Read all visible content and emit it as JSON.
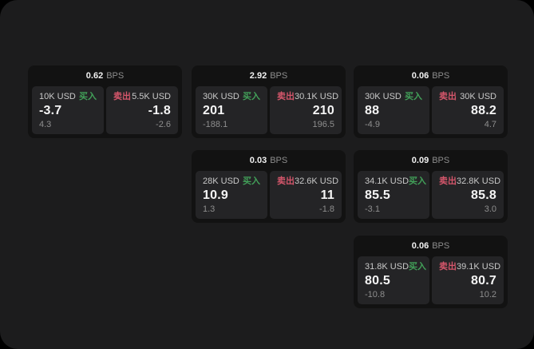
{
  "page": {
    "unit_label": "BPS"
  },
  "labels": {
    "buy": "买入",
    "sell": "卖出"
  },
  "colors": {
    "panel_bg": "#1c1c1d",
    "card_bg": "#121212",
    "pane_bg": "#242426",
    "buy_green": "#42a059",
    "sell_red": "#d4566b"
  },
  "cards": [
    {
      "grid": {
        "row": 0,
        "col": 0
      },
      "bps": "0.62",
      "buy": {
        "amount": "10K USD",
        "value": "-3.7",
        "delta": "4.3"
      },
      "sell": {
        "amount": "5.5K USD",
        "value": "-1.8",
        "delta": "-2.6"
      }
    },
    {
      "grid": {
        "row": 0,
        "col": 1
      },
      "bps": "2.92",
      "buy": {
        "amount": "30K USD",
        "value": "201",
        "delta": "-188.1"
      },
      "sell": {
        "amount": "30.1K USD",
        "value": "210",
        "delta": "196.5"
      }
    },
    {
      "grid": {
        "row": 0,
        "col": 2
      },
      "bps": "0.06",
      "buy": {
        "amount": "30K USD",
        "value": "88",
        "delta": "-4.9"
      },
      "sell": {
        "amount": "30K USD",
        "value": "88.2",
        "delta": "4.7"
      }
    },
    {
      "grid": {
        "row": 1,
        "col": 1
      },
      "bps": "0.03",
      "buy": {
        "amount": "28K USD",
        "value": "10.9",
        "delta": "1.3"
      },
      "sell": {
        "amount": "32.6K USD",
        "value": "11",
        "delta": "-1.8"
      }
    },
    {
      "grid": {
        "row": 1,
        "col": 2
      },
      "bps": "0.09",
      "buy": {
        "amount": "34.1K USD",
        "value": "85.5",
        "delta": "-3.1"
      },
      "sell": {
        "amount": "32.8K USD",
        "value": "85.8",
        "delta": "3.0"
      }
    },
    {
      "grid": {
        "row": 2,
        "col": 2
      },
      "bps": "0.06",
      "buy": {
        "amount": "31.8K USD",
        "value": "80.5",
        "delta": "-10.8"
      },
      "sell": {
        "amount": "39.1K USD",
        "value": "80.7",
        "delta": "10.2"
      }
    }
  ]
}
